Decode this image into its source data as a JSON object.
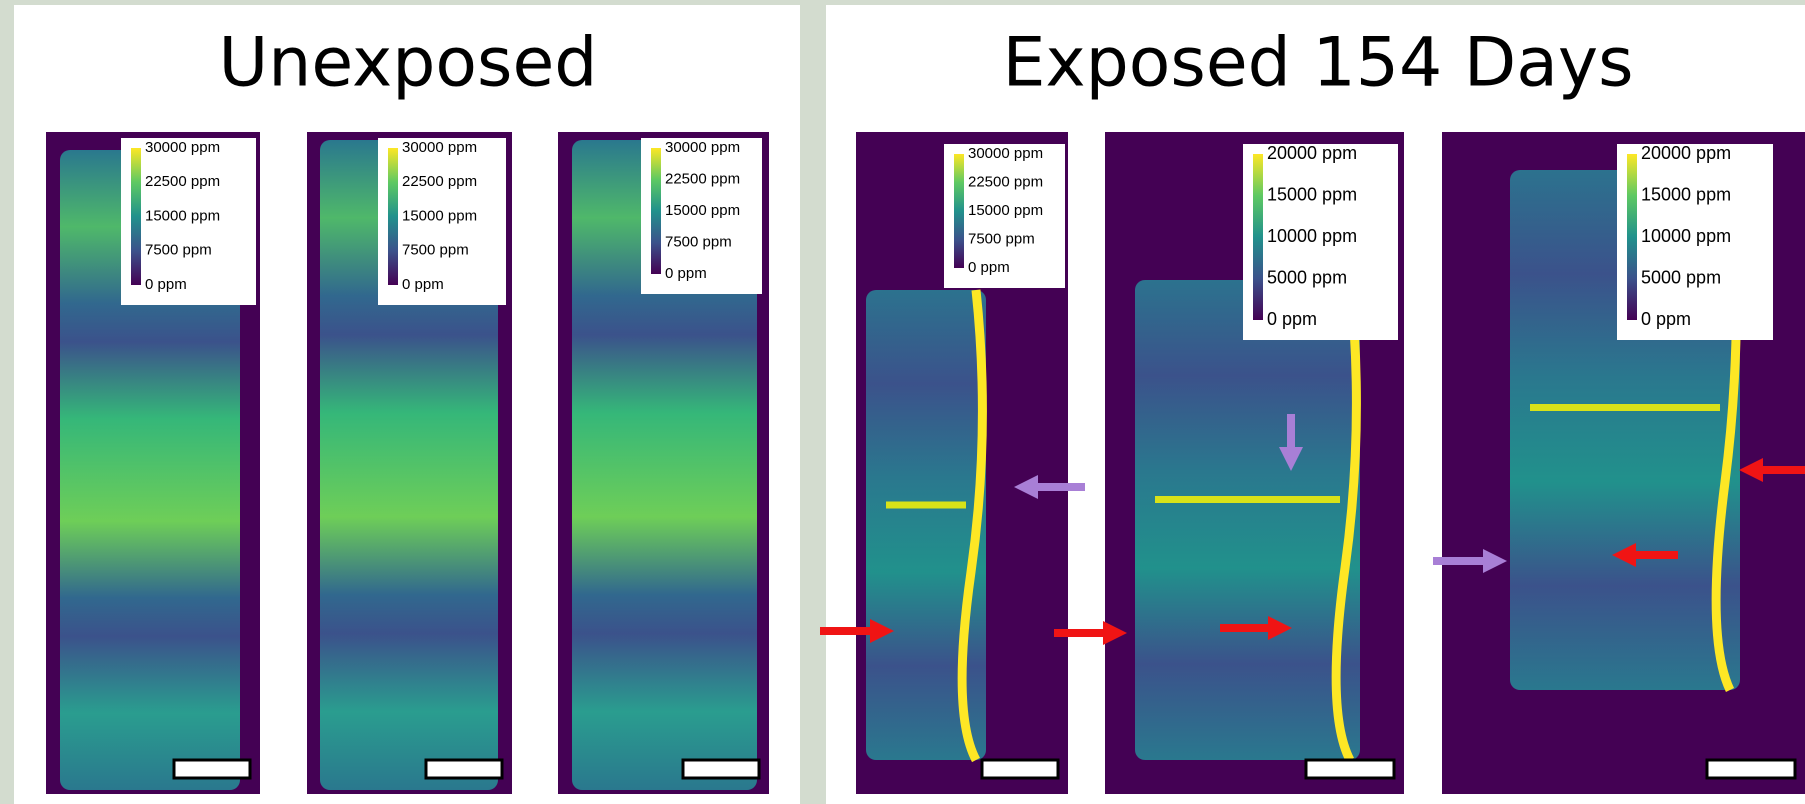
{
  "header": {
    "left_title": "Unexposed",
    "right_title": "Exposed 154 Days"
  },
  "panels": [
    {
      "colorbar": [
        "30000 ppm",
        "22500 ppm",
        "15000 ppm",
        "7500 ppm",
        "0 ppm"
      ]
    },
    {
      "colorbar": [
        "30000 ppm",
        "22500 ppm",
        "15000 ppm",
        "7500 ppm",
        "0 ppm"
      ]
    },
    {
      "colorbar": [
        "30000 ppm",
        "22500 ppm",
        "15000 ppm",
        "7500 ppm",
        "0 ppm"
      ]
    },
    {
      "colorbar": [
        "30000 ppm",
        "22500 ppm",
        "15000 ppm",
        "7500 ppm",
        "0 ppm"
      ]
    },
    {
      "colorbar": [
        "20000 ppm",
        "15000 ppm",
        "10000 ppm",
        "5000 ppm",
        "0 ppm"
      ]
    },
    {
      "colorbar": [
        "20000 ppm",
        "15000 ppm",
        "10000 ppm",
        "5000 ppm",
        "0 ppm"
      ]
    }
  ]
}
